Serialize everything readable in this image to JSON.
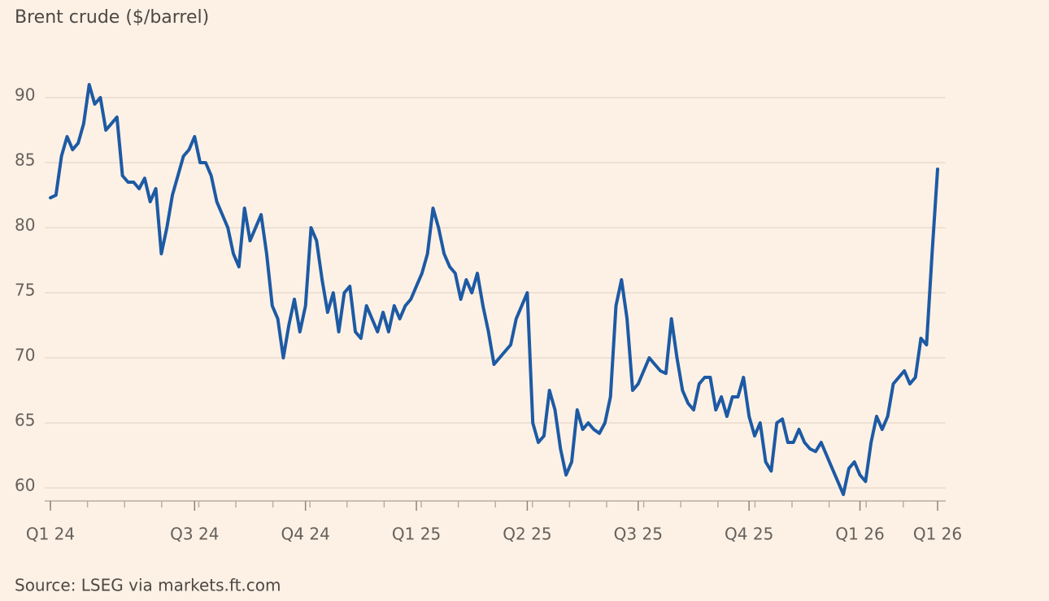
{
  "chart_data": {
    "type": "line",
    "title": "Brent crude ($/barrel)",
    "source": "Source: LSEG via markets.ft.com",
    "categories": [
      "Q1 24",
      null,
      null,
      null,
      null,
      null,
      null,
      null,
      null,
      null,
      null,
      null,
      null,
      null,
      null,
      null,
      null,
      null,
      null,
      null,
      null,
      null,
      null,
      null,
      null,
      null,
      "Q3 24",
      null,
      null,
      null,
      null,
      null,
      null,
      null,
      null,
      null,
      null,
      null,
      null,
      null,
      null,
      null,
      null,
      null,
      null,
      null,
      "Q4 24",
      null,
      null,
      null,
      null,
      null,
      null,
      null,
      null,
      null,
      null,
      null,
      null,
      null,
      null,
      null,
      null,
      null,
      null,
      null,
      "Q1 25",
      null,
      null,
      null,
      null,
      null,
      null,
      null,
      null,
      null,
      null,
      null,
      null,
      null,
      null,
      null,
      null,
      null,
      null,
      null,
      "Q2 25",
      null,
      null,
      null,
      null,
      null,
      null,
      null,
      null,
      null,
      null,
      null,
      null,
      null,
      null,
      null,
      null,
      null,
      null,
      null,
      "Q3 25",
      null,
      null,
      null,
      null,
      null,
      null,
      null,
      null,
      null,
      null,
      null,
      null,
      null,
      null,
      null,
      null,
      null,
      null,
      null,
      "Q4 25",
      null,
      null,
      null,
      null,
      null,
      null,
      null,
      null,
      null,
      null,
      null,
      null,
      null,
      null,
      null,
      null,
      null,
      null,
      null,
      "Q1 26",
      null,
      null,
      null,
      null,
      null,
      null,
      null,
      null,
      null,
      null,
      null,
      null,
      null,
      "Q1 26"
    ],
    "series": [
      {
        "name": "Brent crude",
        "color": "#1d5aa4",
        "values": [
          82.3,
          82.5,
          85.5,
          87,
          86,
          86.5,
          88,
          91,
          89.5,
          90,
          87.5,
          88,
          88.5,
          84,
          83.5,
          83.5,
          83,
          83.8,
          82,
          83,
          78,
          80,
          82.5,
          84,
          85.5,
          86,
          87,
          85,
          85,
          84,
          82,
          81,
          80,
          78,
          77,
          81.5,
          79,
          80,
          81,
          78,
          74,
          73,
          70,
          72.5,
          74.5,
          72,
          74,
          80,
          79,
          76,
          73.5,
          75,
          72,
          75,
          75.5,
          72,
          71.5,
          74,
          73,
          72,
          73.5,
          72,
          74,
          73,
          74,
          74.5,
          75.5,
          76.5,
          78,
          81.5,
          80,
          78,
          77,
          76.5,
          74.5,
          76,
          75,
          76.5,
          74,
          72,
          69.5,
          70,
          70.5,
          71,
          73,
          74,
          75,
          65,
          63.5,
          64,
          67.5,
          66,
          63,
          61,
          62,
          66,
          64.5,
          65,
          64.5,
          64.2,
          65,
          67,
          74,
          76,
          73,
          67.5,
          68,
          69,
          70,
          69.5,
          69,
          68.8,
          73,
          70,
          67.5,
          66.5,
          66,
          68,
          68.5,
          68.5,
          66,
          67,
          65.5,
          67,
          67,
          68.5,
          65.5,
          64,
          65,
          62,
          61.3,
          65,
          65.3,
          63.5,
          63.5,
          64.5,
          63.5,
          63,
          62.8,
          63.5,
          62.5,
          61.5,
          60.5,
          59.5,
          61.5,
          62,
          61,
          60.5,
          63.5,
          65.5,
          64.5,
          65.5,
          68,
          68.5,
          69,
          68,
          68.5,
          71.5,
          71,
          78,
          84.5
        ]
      }
    ],
    "ylim": [
      59,
      92
    ],
    "yticks": [
      60,
      65,
      70,
      75,
      80,
      85,
      90
    ],
    "grid": true
  }
}
